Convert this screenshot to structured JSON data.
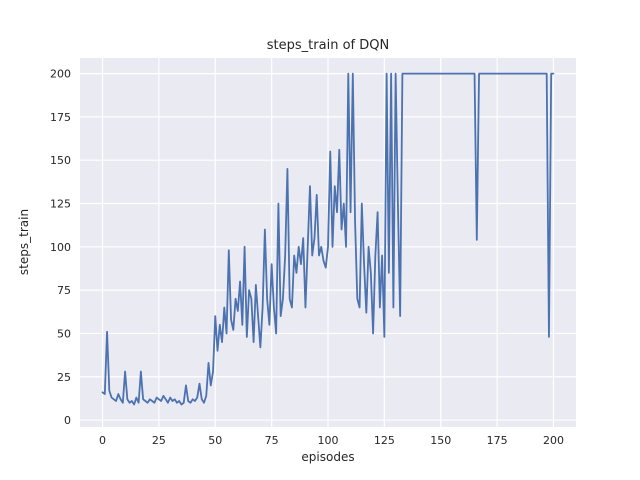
{
  "chart_data": {
    "type": "line",
    "title": "steps_train of DQN",
    "xlabel": "episodes",
    "ylabel": "steps_train",
    "legend": "none",
    "grid": true,
    "style": "seaborn-darkgrid",
    "x_start": 0,
    "x_step": 1,
    "xlim": [
      -10,
      210
    ],
    "ylim": [
      -4,
      209
    ],
    "xticks": [
      0,
      25,
      50,
      75,
      100,
      125,
      150,
      175,
      200
    ],
    "yticks": [
      0,
      25,
      50,
      75,
      100,
      125,
      150,
      175,
      200
    ],
    "line_color": "#4c72b0",
    "plot_bg": "#eaeaf2",
    "grid_color": "#ffffff",
    "text_color": "#262626",
    "values": [
      16,
      15,
      51,
      17,
      13,
      12,
      11,
      15,
      12,
      10,
      28,
      12,
      10,
      11,
      9,
      13,
      10,
      28,
      12,
      11,
      10,
      12,
      11,
      10,
      13,
      12,
      11,
      14,
      12,
      10,
      13,
      11,
      12,
      10,
      11,
      9,
      10,
      20,
      11,
      10,
      12,
      11,
      13,
      21,
      12,
      10,
      14,
      33,
      20,
      28,
      60,
      40,
      55,
      45,
      65,
      50,
      98,
      58,
      52,
      70,
      63,
      80,
      55,
      100,
      48,
      75,
      70,
      45,
      78,
      60,
      42,
      65,
      110,
      70,
      55,
      90,
      65,
      50,
      125,
      60,
      70,
      95,
      145,
      70,
      65,
      95,
      85,
      100,
      90,
      105,
      65,
      100,
      135,
      95,
      105,
      130,
      95,
      100,
      92,
      88,
      100,
      155,
      100,
      135,
      120,
      156,
      110,
      125,
      100,
      200,
      120,
      200,
      115,
      70,
      65,
      125,
      90,
      62,
      100,
      85,
      50,
      95,
      120,
      65,
      95,
      48,
      200,
      85,
      200,
      65,
      200,
      125,
      60,
      200,
      200,
      200,
      200,
      200,
      200,
      200,
      200,
      200,
      200,
      200,
      200,
      200,
      200,
      200,
      200,
      200,
      200,
      200,
      200,
      200,
      200,
      200,
      200,
      200,
      200,
      200,
      200,
      200,
      200,
      200,
      200,
      200,
      104,
      200,
      200,
      200,
      200,
      200,
      200,
      200,
      200,
      200,
      200,
      200,
      200,
      200,
      200,
      200,
      200,
      200,
      200,
      200,
      200,
      200,
      200,
      200,
      200,
      200,
      200,
      200,
      200,
      200,
      200,
      200,
      48,
      200,
      200
    ]
  }
}
